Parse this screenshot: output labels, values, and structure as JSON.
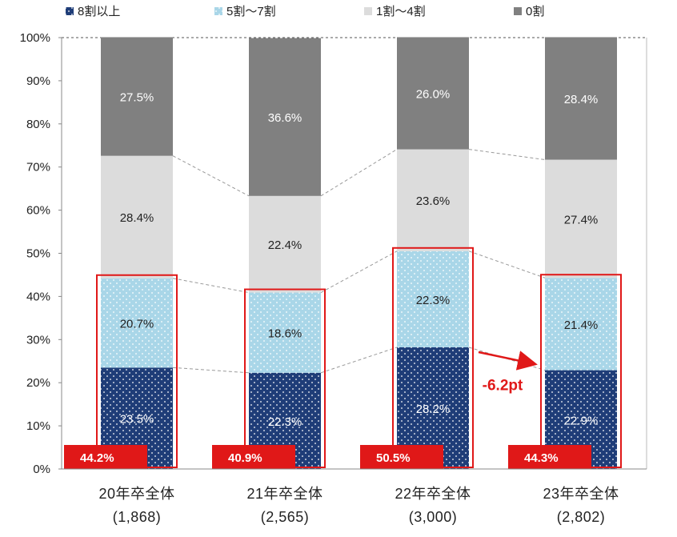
{
  "chart_data": {
    "type": "bar",
    "stacked": true,
    "percent": true,
    "categories": [
      "20年卒全体",
      "21年卒全体",
      "22年卒全体",
      "23年卒全体"
    ],
    "category_counts": [
      "(1,868)",
      "(2,565)",
      "(3,000)",
      "(2,802)"
    ],
    "series": [
      {
        "name": "8割以上",
        "values": [
          23.5,
          22.3,
          28.2,
          22.9
        ],
        "labels": [
          "23.5%",
          "22.3%",
          "28.2%",
          "22.9%"
        ],
        "color": "#1f3d78",
        "pattern": "dots-white",
        "label_color": "#ffffff"
      },
      {
        "name": "5割～7割",
        "values": [
          20.7,
          18.6,
          22.3,
          21.4
        ],
        "labels": [
          "20.7%",
          "18.6%",
          "22.3%",
          "21.4%"
        ],
        "color": "#a9d6e8",
        "pattern": "dots-white",
        "label_color": "#222222"
      },
      {
        "name": "1割～4割",
        "values": [
          28.4,
          22.4,
          23.6,
          27.4
        ],
        "labels": [
          "28.4%",
          "22.4%",
          "23.6%",
          "27.4%"
        ],
        "color": "#dcdcdc",
        "pattern": "none",
        "label_color": "#222222"
      },
      {
        "name": "0割",
        "values": [
          27.5,
          36.6,
          26.0,
          28.4
        ],
        "labels": [
          "27.5%",
          "36.6%",
          "26.0%",
          "28.4%"
        ],
        "color": "#808080",
        "pattern": "none",
        "label_color": "#ffffff"
      }
    ],
    "highlight_totals": [
      "44.2%",
      "40.9%",
      "50.5%",
      "44.3%"
    ],
    "highlight_color": "#e01818",
    "annotation": {
      "text": "-6.2pt",
      "from_category": 2,
      "to_category": 3
    },
    "ylim": [
      0,
      100
    ],
    "yticks": [
      "0%",
      "10%",
      "20%",
      "30%",
      "40%",
      "50%",
      "60%",
      "70%",
      "80%",
      "90%",
      "100%"
    ],
    "legend_position": "top",
    "connector_lines": "dashed-gray"
  }
}
